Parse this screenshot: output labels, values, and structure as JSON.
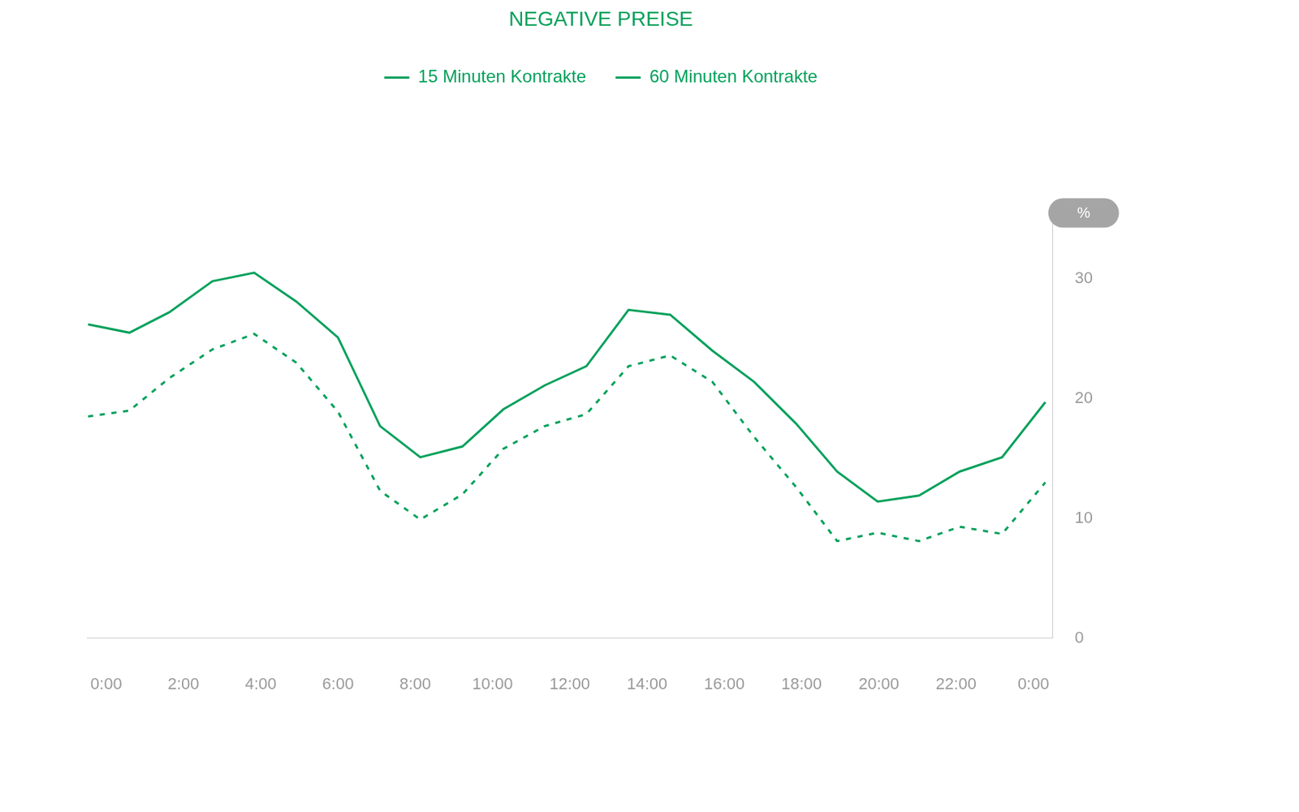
{
  "chart_data": {
    "type": "line",
    "title": "NEGATIVE PREISE",
    "y_label": "%",
    "x": [
      -0.47,
      0.6,
      1.63,
      2.75,
      3.83,
      4.92,
      6.0,
      7.09,
      8.13,
      9.22,
      10.28,
      11.35,
      12.43,
      13.52,
      14.6,
      15.69,
      16.77,
      17.86,
      18.92,
      19.97,
      21.04,
      22.09,
      23.19,
      24.31
    ],
    "xlim": [
      -0.5,
      24.5
    ],
    "xticks": [
      {
        "value": 0,
        "label": "0:00"
      },
      {
        "value": 2,
        "label": "2:00"
      },
      {
        "value": 4,
        "label": "4:00"
      },
      {
        "value": 6,
        "label": "6:00"
      },
      {
        "value": 8,
        "label": "8:00"
      },
      {
        "value": 10,
        "label": "10:00"
      },
      {
        "value": 12,
        "label": "12:00"
      },
      {
        "value": 14,
        "label": "14:00"
      },
      {
        "value": 16,
        "label": "16:00"
      },
      {
        "value": 18,
        "label": "18:00"
      },
      {
        "value": 20,
        "label": "20:00"
      },
      {
        "value": 22,
        "label": "22:00"
      },
      {
        "value": 24,
        "label": "0:00"
      }
    ],
    "ylim": [
      0,
      35
    ],
    "yticks": [
      0,
      10,
      20,
      30
    ],
    "grid": false,
    "legend": "top",
    "series": [
      {
        "name": "15 Minuten Kontrakte",
        "color": "#00a05a",
        "line_style": "solid",
        "values": [
          26.2,
          25.5,
          27.2,
          29.8,
          30.5,
          28.1,
          25.1,
          17.7,
          15.1,
          16.0,
          19.1,
          21.1,
          22.7,
          27.4,
          27.0,
          24.0,
          21.4,
          17.9,
          13.9,
          11.4,
          11.9,
          13.9,
          15.1,
          19.7
        ]
      },
      {
        "name": "60 Minuten Kontrakte",
        "color": "#00a05a",
        "line_style": "dashed",
        "values": [
          18.5,
          19.0,
          21.7,
          24.1,
          25.4,
          23.0,
          18.9,
          12.3,
          9.9,
          12.0,
          15.8,
          17.7,
          18.7,
          22.7,
          23.6,
          21.4,
          16.8,
          12.6,
          8.1,
          8.8,
          8.1,
          9.3,
          8.7,
          13.0
        ]
      }
    ]
  }
}
